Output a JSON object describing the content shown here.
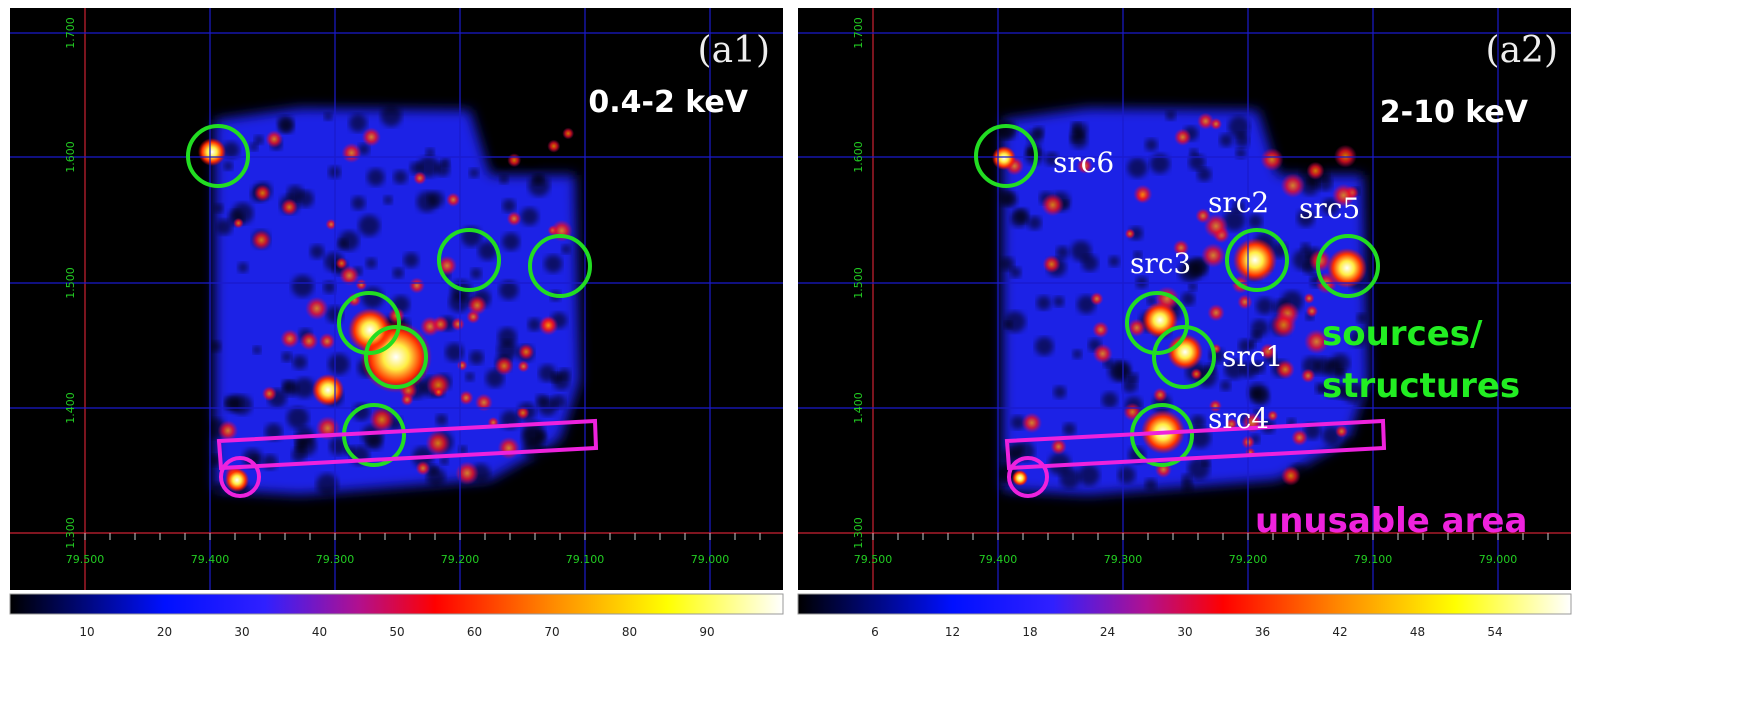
{
  "panels": [
    {
      "label": "(a1)",
      "band": "0.4-2 keV",
      "yticks": [
        "1.700",
        "1.600",
        "1.500",
        "1.400",
        "1.300"
      ],
      "xticks": [
        "79.500",
        "79.400",
        "79.300",
        "79.200",
        "79.100",
        "79.000"
      ],
      "colorbar": [
        "10",
        "20",
        "30",
        "40",
        "50",
        "60",
        "70",
        "80",
        "90"
      ]
    },
    {
      "label": "(a2)",
      "band": "2-10 keV",
      "yticks": [
        "1.700",
        "1.600",
        "1.500",
        "1.400",
        "1.300"
      ],
      "xticks": [
        "79.500",
        "79.400",
        "79.300",
        "79.200",
        "79.100",
        "79.000"
      ],
      "colorbar": [
        "6",
        "12",
        "18",
        "24",
        "30",
        "36",
        "42",
        "48",
        "54"
      ],
      "sources": [
        "src6",
        "src2",
        "src5",
        "src3",
        "src1",
        "src4"
      ]
    }
  ],
  "annotations": {
    "sources": [
      "sources/",
      "structures"
    ],
    "unusable": "unusable area"
  }
}
